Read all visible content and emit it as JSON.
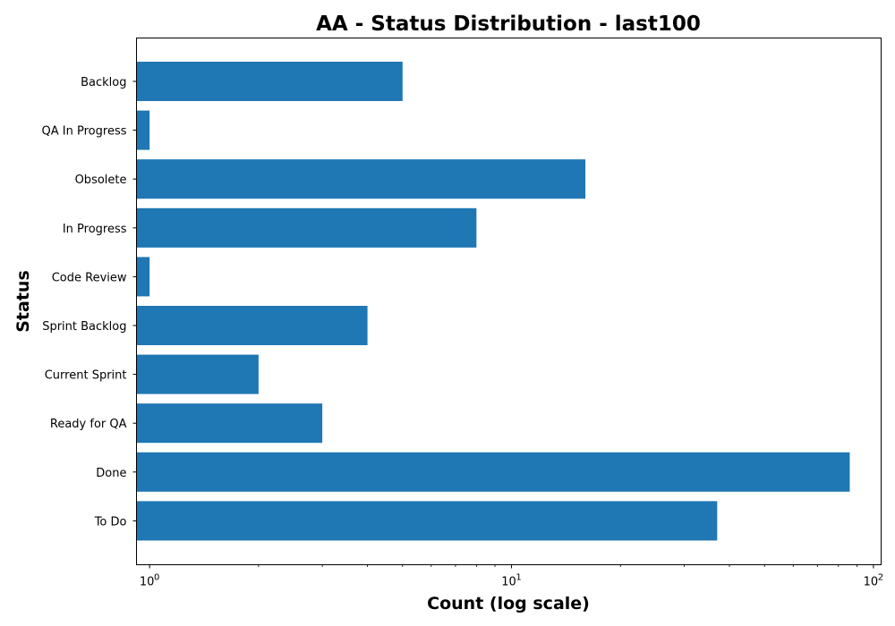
{
  "chart_data": {
    "type": "bar",
    "orientation": "horizontal",
    "title": "AA - Status Distribution - last100",
    "xlabel": "Count (log scale)",
    "ylabel": "Status",
    "xscale": "log",
    "xlim": [
      0.92,
      105
    ],
    "xticks": [
      {
        "value": 1,
        "base": "10",
        "exp": "0"
      },
      {
        "value": 10,
        "base": "10",
        "exp": "1"
      },
      {
        "value": 100,
        "base": "10",
        "exp": "2"
      }
    ],
    "categories": [
      "Backlog",
      "QA In Progress",
      "Obsolete",
      "In Progress",
      "Code Review",
      "Sprint Backlog",
      "Current Sprint",
      "Ready for QA",
      "Done",
      "To Do"
    ],
    "values": [
      5,
      1,
      16,
      8,
      1,
      4,
      2,
      3,
      86,
      37
    ],
    "bar_color": "#1f77b4",
    "grid": false,
    "legend": "none"
  }
}
